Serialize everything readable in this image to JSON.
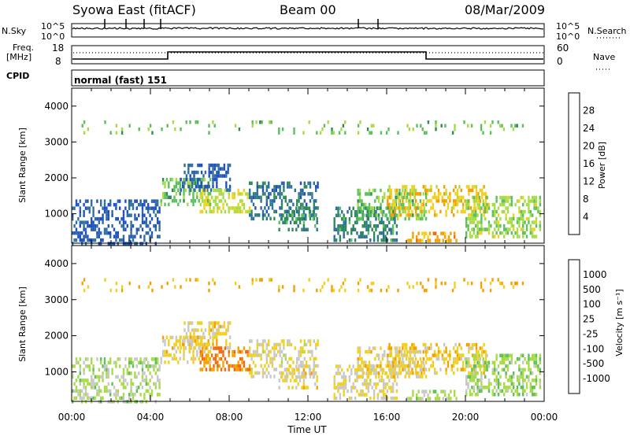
{
  "header": {
    "title": "Syowa East (fitACF)",
    "beam": "Beam 00",
    "date": "08/Mar/2009"
  },
  "summary": {
    "nsky_label": "N.Sky",
    "nsky_ticks": [
      "10^5",
      "10^0"
    ],
    "nsearch_label": "N.Search",
    "freq_label_1": "Freq.",
    "freq_label_2": "[MHz]",
    "freq_ticks": [
      "18",
      "8"
    ],
    "nave_ticks": [
      "60",
      "0"
    ],
    "nave_label": "Nave",
    "cpid_label": "CPID",
    "cpid_value": "normal (fast) 151"
  },
  "colors": {
    "power_scale": [
      "#1414e6",
      "#2050c0",
      "#2f6fa0",
      "#2e8b57",
      "#5cc05c",
      "#a8dc46",
      "#f0d020",
      "#f5a000",
      "#f06a10",
      "#e60000"
    ],
    "velocity_scale": [
      "#e60000",
      "#f06a10",
      "#f5a000",
      "#f0d020",
      "#c8c8c8",
      "#a8dc46",
      "#5cc05c",
      "#2e8b57",
      "#2050c0",
      "#1414e6"
    ],
    "scatter": "#000000"
  },
  "chart_data": [
    {
      "type": "heatmap",
      "panel": "power",
      "ylabel": "Slant Range [km]",
      "y_ticks": [
        "4000",
        "3000",
        "2000",
        "1000"
      ],
      "ylim": [
        180,
        4500
      ],
      "x_ticks": [
        "00:00",
        "04:00",
        "08:00",
        "12:00",
        "16:00",
        "20:00",
        "00:00"
      ],
      "xlim": [
        0,
        24
      ],
      "colorbar_label": "Power [dB]",
      "colorbar_ticks": [
        "28",
        "24",
        "20",
        "16",
        "12",
        "8",
        "4"
      ],
      "colorbar_range": [
        0,
        30
      ],
      "echo_regions": [
        {
          "t0": 0.0,
          "t1": 4.5,
          "r0": 200,
          "r1": 1400,
          "value": 6
        },
        {
          "t0": 4.5,
          "t1": 7.0,
          "r0": 1300,
          "r1": 2000,
          "value": 14
        },
        {
          "t0": 5.5,
          "t1": 8.0,
          "r0": 1700,
          "r1": 2400,
          "value": 6
        },
        {
          "t0": 6.5,
          "t1": 9.0,
          "r0": 1100,
          "r1": 1700,
          "value": 18
        },
        {
          "t0": 9.0,
          "t1": 12.5,
          "r0": 900,
          "r1": 1900,
          "value": 8
        },
        {
          "t0": 10.5,
          "t1": 12.5,
          "r0": 600,
          "r1": 1200,
          "value": 10
        },
        {
          "t0": 13.3,
          "t1": 16.5,
          "r0": 300,
          "r1": 1200,
          "value": 10
        },
        {
          "t0": 14.5,
          "t1": 18.0,
          "r0": 900,
          "r1": 1700,
          "value": 14
        },
        {
          "t0": 16.0,
          "t1": 21.0,
          "r0": 1000,
          "r1": 1800,
          "value": 20
        },
        {
          "t0": 17.0,
          "t1": 19.5,
          "r0": 250,
          "r1": 500,
          "value": 22
        },
        {
          "t0": 20.0,
          "t1": 23.8,
          "r0": 400,
          "r1": 1500,
          "value": 16
        },
        {
          "t0": 0.5,
          "t1": 23.0,
          "r0": 3300,
          "r1": 3600,
          "value": 14
        }
      ]
    },
    {
      "type": "heatmap",
      "panel": "velocity",
      "ylabel": "Slant Range [km]",
      "y_ticks": [
        "4000",
        "3000",
        "2000",
        "1000"
      ],
      "ylim": [
        180,
        4500
      ],
      "x_ticks": [
        "00:00",
        "04:00",
        "08:00",
        "12:00",
        "16:00",
        "20:00",
        "00:00"
      ],
      "xlim": [
        0,
        24
      ],
      "xlabel": "Time UT",
      "colorbar_label": "Velocity [m s⁻¹]",
      "colorbar_ticks": [
        "1000",
        "500",
        "100",
        "25",
        "-25",
        "-100",
        "-500",
        "-1000"
      ],
      "colorbar_range": [
        -1200,
        1200
      ],
      "echo_regions": [
        {
          "t0": 0.0,
          "t1": 4.5,
          "r0": 200,
          "r1": 1400,
          "value": 60
        },
        {
          "t0": 4.5,
          "t1": 7.0,
          "r0": 1300,
          "r1": 2000,
          "value": -300
        },
        {
          "t0": 5.5,
          "t1": 8.0,
          "r0": 1700,
          "r1": 2400,
          "value": -300
        },
        {
          "t0": 6.5,
          "t1": 9.0,
          "r0": 1100,
          "r1": 1700,
          "value": -700
        },
        {
          "t0": 9.0,
          "t1": 12.5,
          "r0": 900,
          "r1": 1900,
          "value": -200
        },
        {
          "t0": 10.5,
          "t1": 12.5,
          "r0": 600,
          "r1": 1200,
          "value": -300
        },
        {
          "t0": 13.3,
          "t1": 16.5,
          "r0": 300,
          "r1": 1200,
          "value": -200
        },
        {
          "t0": 14.5,
          "t1": 18.0,
          "r0": 900,
          "r1": 1700,
          "value": -300
        },
        {
          "t0": 16.0,
          "t1": 21.0,
          "r0": 1000,
          "r1": 1800,
          "value": -400
        },
        {
          "t0": 17.0,
          "t1": 19.5,
          "r0": 250,
          "r1": 500,
          "value": 50
        },
        {
          "t0": 20.0,
          "t1": 23.8,
          "r0": 400,
          "r1": 1500,
          "value": 150
        },
        {
          "t0": 0.5,
          "t1": 23.0,
          "r0": 3300,
          "r1": 3600,
          "value": -500
        }
      ]
    }
  ]
}
